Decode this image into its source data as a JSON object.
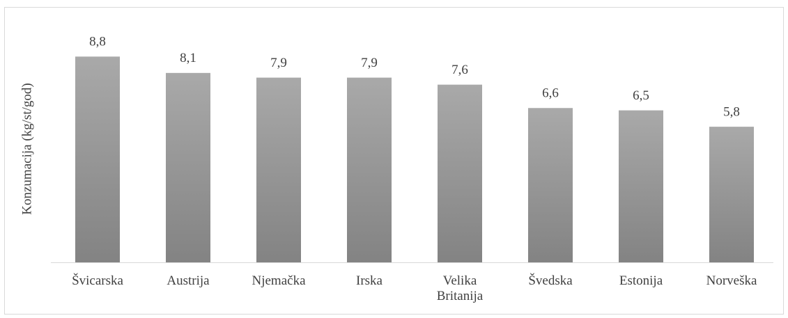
{
  "chart_data": {
    "type": "bar",
    "y_label": "Konzumacija (kg/st/god)",
    "categories": [
      "Švicarska",
      "Austrija",
      "Njemačka",
      "Irska",
      "Velika Britanija",
      "Švedska",
      "Estonija",
      "Norveška"
    ],
    "values": [
      8.8,
      8.1,
      7.9,
      7.9,
      7.6,
      6.6,
      6.5,
      5.8
    ],
    "value_labels": [
      "8,8",
      "8,1",
      "7,9",
      "7,9",
      "7,6",
      "6,6",
      "6,5",
      "5,8"
    ],
    "color": "#999999",
    "ylim": [
      0,
      10
    ]
  }
}
